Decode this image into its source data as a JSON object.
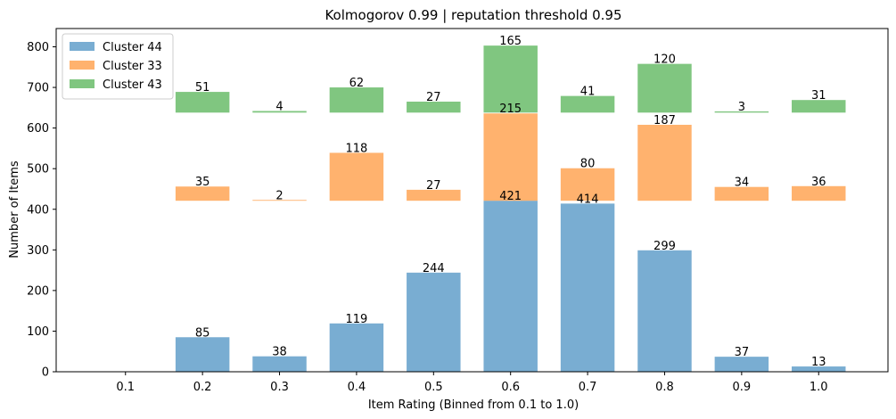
{
  "chart_data": {
    "type": "bar",
    "title": "Kolmogorov 0.99 | reputation threshold 0.95",
    "xlabel": "Item Rating (Binned from 0.1 to 1.0)",
    "ylabel": "Number of Items",
    "categories": [
      "0.1",
      "0.2",
      "0.3",
      "0.4",
      "0.5",
      "0.6",
      "0.7",
      "0.8",
      "0.9",
      "1.0"
    ],
    "ylim": [
      0,
      845
    ],
    "yticks": [
      0,
      100,
      200,
      300,
      400,
      500,
      600,
      700,
      800
    ],
    "legend_position": "top-left",
    "series": [
      {
        "name": "Cluster 44",
        "color": "#1f77b4",
        "offset": 0,
        "values": [
          0,
          85,
          38,
          119,
          244,
          421,
          414,
          299,
          37,
          13
        ],
        "labels": [
          "",
          "85",
          "38",
          "119",
          "244",
          "421",
          "414",
          "299",
          "37",
          "13"
        ]
      },
      {
        "name": "Cluster 33",
        "color": "#ff7f0e",
        "offset": 421,
        "values": [
          0,
          35,
          2,
          118,
          27,
          215,
          80,
          187,
          34,
          36
        ],
        "labels": [
          "",
          "35",
          "2",
          "118",
          "27",
          "215",
          "80",
          "187",
          "34",
          "36"
        ]
      },
      {
        "name": "Cluster 43",
        "color": "#2ca02c",
        "offset": 638,
        "values": [
          0,
          51,
          4,
          62,
          27,
          165,
          41,
          120,
          3,
          31
        ],
        "labels": [
          "",
          "51",
          "4",
          "62",
          "27",
          "165",
          "41",
          "120",
          "3",
          "31"
        ]
      }
    ]
  }
}
